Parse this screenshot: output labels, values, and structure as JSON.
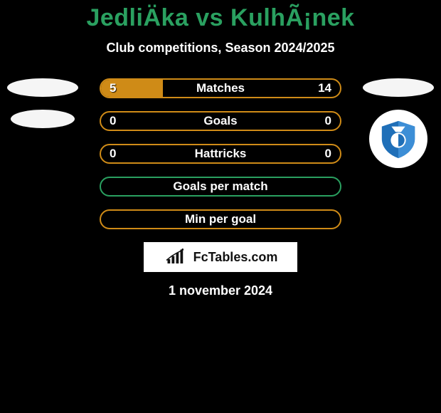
{
  "title": {
    "text": "JedliÄka vs KulhÃ¡nek",
    "color": "#2aa060",
    "fontsize": 34
  },
  "subtitle": "Club competitions, Season 2024/2025",
  "date": "1 november 2024",
  "site": "FcTables.com",
  "badges": {
    "left": {
      "type": "ellipse-only"
    },
    "right": {
      "type": "ellipse-plus-club",
      "club_primary": "#1f6fb8",
      "club_secondary": "#ffffff"
    }
  },
  "bars": [
    {
      "label": "Matches",
      "left": "5",
      "right": "14",
      "border": "#cf8b17",
      "fill": "#cf8b17",
      "fill_side": "left",
      "fill_pct": 26
    },
    {
      "label": "Goals",
      "left": "0",
      "right": "0",
      "border": "#cf8b17",
      "fill": null,
      "fill_side": null,
      "fill_pct": 0
    },
    {
      "label": "Hattricks",
      "left": "0",
      "right": "0",
      "border": "#cf8b17",
      "fill": null,
      "fill_side": null,
      "fill_pct": 0
    },
    {
      "label": "Goals per match",
      "left": "",
      "right": "",
      "border": "#2aa060",
      "fill": null,
      "fill_side": null,
      "fill_pct": 0
    },
    {
      "label": "Min per goal",
      "left": "",
      "right": "",
      "border": "#cf8b17",
      "fill": null,
      "fill_side": null,
      "fill_pct": 0
    }
  ],
  "style": {
    "background": "#000000",
    "bar_label_color": "#ffffff",
    "ellipse_color": "#ffffff"
  }
}
